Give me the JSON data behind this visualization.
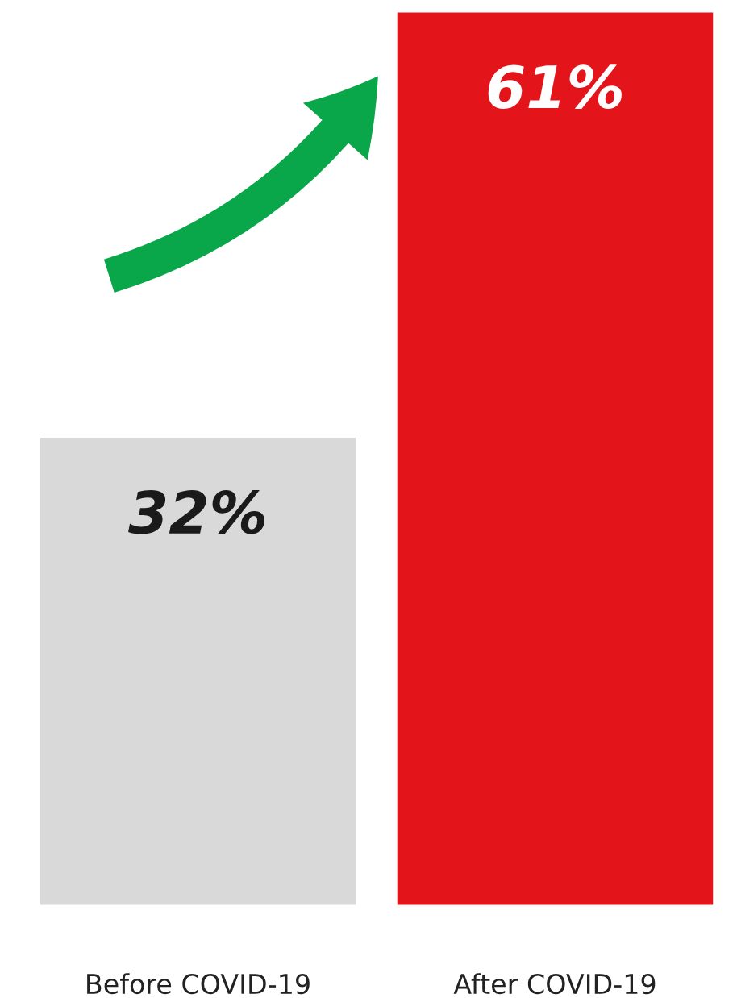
{
  "chart_data": {
    "type": "bar",
    "categories": [
      "Before COVID-19",
      "After COVID-19"
    ],
    "values": [
      32,
      61
    ],
    "colors": [
      "#d9d9d9",
      "#e4141b"
    ],
    "value_labels": [
      "32%",
      "61%"
    ]
  }
}
